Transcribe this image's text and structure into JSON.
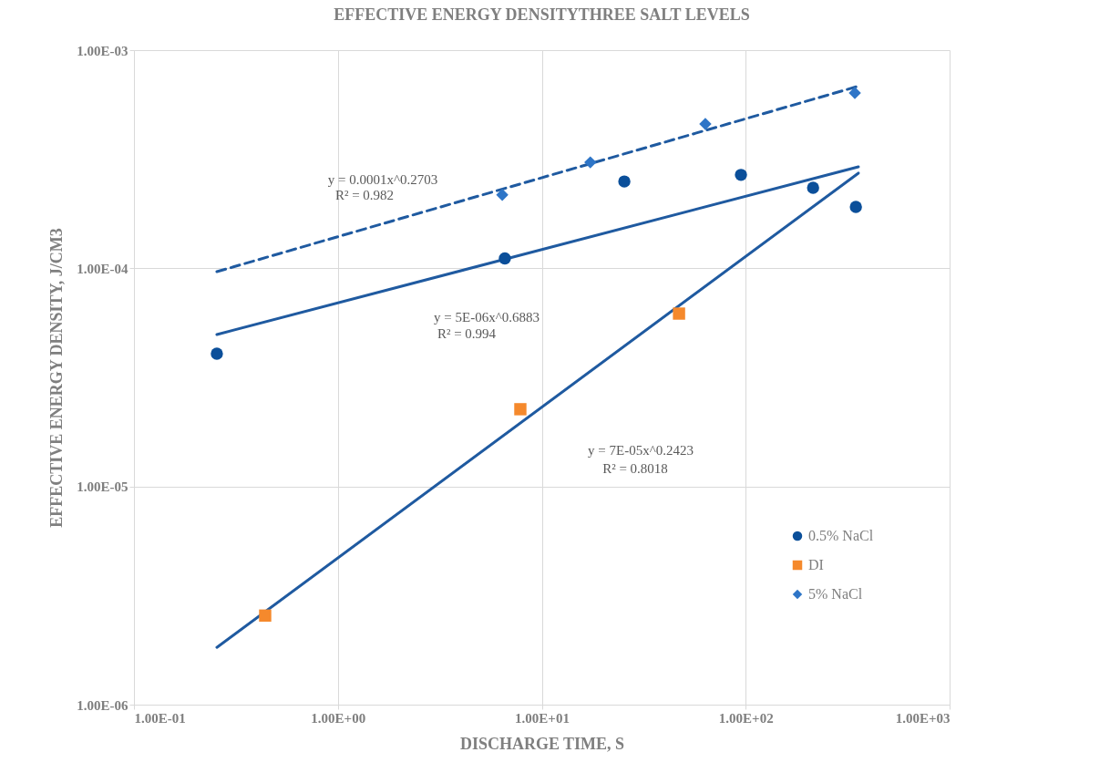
{
  "chart_data": {
    "type": "scatter",
    "title": "EFFECTIVE ENERGY DENSITYTHREE SALT LEVELS",
    "xlabel": "DISCHARGE TIME, S",
    "ylabel": "EFFECTIVE ENERGY DENSITY, J/CM3",
    "log": "xy",
    "grid": true,
    "legend": "right",
    "xlim": [
      0.1,
      1000
    ],
    "ylim": [
      1e-06,
      0.001
    ],
    "xticks": [
      {
        "value": 0.1,
        "label": "1.00E-01"
      },
      {
        "value": 1,
        "label": "1.00E+00"
      },
      {
        "value": 10,
        "label": "1.00E+01"
      },
      {
        "value": 100,
        "label": "1.00E+02"
      },
      {
        "value": 1000,
        "label": "1.00E+03"
      }
    ],
    "yticks": [
      {
        "value": 1e-06,
        "label": "1.00E-06"
      },
      {
        "value": 1e-05,
        "label": "1.00E-05"
      },
      {
        "value": 0.0001,
        "label": "1.00E-04"
      },
      {
        "value": 0.001,
        "label": "1.00E-03"
      }
    ],
    "series": [
      {
        "type": "line",
        "line_style": "dashed",
        "color": "#1f5aa0",
        "x": [
          0.255,
          350
        ],
        "values": [
          9.65e-05,
          0.00068
        ]
      },
      {
        "type": "line",
        "line_style": "solid",
        "color": "#1f5aa0",
        "x": [
          0.255,
          357
        ],
        "values": [
          4.97e-05,
          0.000292
        ]
      },
      {
        "type": "line",
        "line_style": "solid",
        "color": "#1f5aa0",
        "x": [
          0.255,
          357
        ],
        "values": [
          1.83e-06,
          0.000273
        ]
      },
      {
        "name": "0.5% NaCl",
        "marker": "circle",
        "color": "#0b4f9a",
        "x": [
          0.255,
          6.59,
          25.4,
          94.8,
          214,
          347
        ],
        "values": [
          4.06e-05,
          0.000111,
          0.00025,
          0.000268,
          0.000234,
          0.000191
        ]
      },
      {
        "name": "DI",
        "marker": "square",
        "color": "#f5892c",
        "x": [
          0.44,
          7.85,
          47.1
        ],
        "values": [
          2.56e-06,
          2.26e-05,
          6.2e-05
        ]
      },
      {
        "name": "5% NaCl",
        "marker": "diamond",
        "color": "#2e75c7",
        "x": [
          6.4,
          17.3,
          63.4,
          343
        ],
        "values": [
          0.000217,
          0.000306,
          0.000459,
          0.000636
        ]
      }
    ],
    "annotations": [
      "y = 0.0001x^0.2703",
      "R² = 0.982",
      "y = 5E-06x^0.6883",
      "R² = 0.994",
      "y = 7E-05x^0.2423",
      "R² = 0.8018"
    ]
  }
}
